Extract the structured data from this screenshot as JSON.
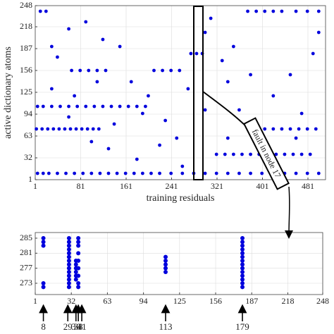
{
  "chart_data": [
    {
      "type": "scatter",
      "xlabel": "training residuals",
      "ylabel": "active dictionary atoms",
      "annotation": "fault in node 17",
      "color": "#0000dd",
      "grid": true,
      "xlim": [
        1,
        512
      ],
      "ylim": [
        1,
        248
      ],
      "xticks": [
        1,
        81,
        161,
        241,
        321,
        401,
        481
      ],
      "yticks": [
        1,
        32,
        63,
        94,
        125,
        156,
        187,
        218,
        248
      ],
      "x": [
        5,
        15,
        25,
        40,
        55,
        70,
        85,
        100,
        115,
        130,
        145,
        160,
        175,
        190,
        205,
        220,
        240,
        260,
        280,
        300,
        320,
        340,
        360,
        380,
        400,
        420,
        440,
        460,
        480,
        500,
        5,
        15,
        30,
        45,
        60,
        75,
        90,
        105,
        120,
        135,
        150,
        165,
        180,
        195,
        3,
        13,
        23,
        33,
        43,
        53,
        63,
        73,
        83,
        93,
        103,
        113,
        405,
        420,
        435,
        450,
        465,
        480,
        495,
        320,
        335,
        350,
        365,
        380,
        395,
        410,
        425,
        440,
        455,
        470,
        485,
        65,
        80,
        95,
        110,
        125,
        210,
        225,
        240,
        255,
        375,
        390,
        405,
        420,
        435,
        460,
        480,
        500,
        275,
        285,
        295,
        10,
        20,
        30,
        40,
        60,
        90,
        120,
        150,
        170,
        200,
        230,
        250,
        270,
        300,
        310,
        330,
        340,
        350,
        360,
        380,
        420,
        450,
        470,
        490,
        500,
        130,
        180,
        220,
        260,
        100,
        60,
        140,
        190,
        300,
        340,
        380,
        460,
        30,
        70,
        110
      ],
      "values": [
        10,
        10,
        10,
        10,
        10,
        10,
        10,
        10,
        10,
        10,
        10,
        10,
        10,
        10,
        10,
        10,
        10,
        10,
        10,
        10,
        10,
        10,
        10,
        10,
        10,
        10,
        10,
        10,
        10,
        10,
        105,
        105,
        105,
        105,
        105,
        105,
        105,
        105,
        105,
        105,
        105,
        105,
        105,
        105,
        73,
        73,
        73,
        73,
        73,
        73,
        73,
        73,
        73,
        73,
        73,
        73,
        73,
        73,
        73,
        73,
        73,
        73,
        73,
        37,
        37,
        37,
        37,
        37,
        37,
        37,
        37,
        37,
        37,
        37,
        37,
        156,
        156,
        156,
        156,
        156,
        156,
        156,
        156,
        156,
        240,
        240,
        240,
        240,
        240,
        240,
        240,
        240,
        180,
        180,
        180,
        240,
        240,
        190,
        175,
        215,
        225,
        200,
        190,
        140,
        120,
        85,
        60,
        130,
        210,
        230,
        170,
        140,
        190,
        100,
        150,
        120,
        150,
        95,
        180,
        210,
        45,
        30,
        50,
        20,
        55,
        90,
        80,
        95,
        100,
        60,
        75,
        60,
        130,
        120,
        140
      ]
    },
    {
      "type": "scatter",
      "color": "#0000dd",
      "grid": true,
      "xlim": [
        1,
        248
      ],
      "ylim": [
        270,
        286.5
      ],
      "xticks": [
        1,
        32,
        63,
        94,
        125,
        156,
        187,
        218,
        248
      ],
      "yticks": [
        273,
        277,
        281,
        285
      ],
      "x": [
        8,
        8,
        8,
        8,
        8,
        30,
        30,
        30,
        30,
        30,
        30,
        30,
        30,
        30,
        30,
        30,
        30,
        30,
        30,
        36,
        36,
        36,
        36,
        36,
        36,
        38,
        38,
        38,
        38,
        38,
        38,
        38,
        38,
        38,
        113,
        113,
        113,
        113,
        113,
        179,
        179,
        179,
        179,
        179,
        179,
        179,
        179,
        179,
        179,
        179,
        179,
        179,
        179
      ],
      "values": [
        283,
        284,
        285,
        272,
        273,
        272,
        273,
        274,
        275,
        276,
        277,
        278,
        279,
        280,
        281,
        282,
        283,
        284,
        285,
        274,
        275,
        276,
        277,
        278,
        279,
        272,
        273,
        275,
        277,
        279,
        281,
        283,
        284,
        285,
        276,
        277,
        278,
        279,
        280,
        272,
        273,
        274,
        275,
        276,
        277,
        278,
        279,
        280,
        281,
        282,
        283,
        284,
        285
      ],
      "arrows": [
        8,
        29,
        36,
        38,
        41,
        113,
        179
      ]
    }
  ]
}
